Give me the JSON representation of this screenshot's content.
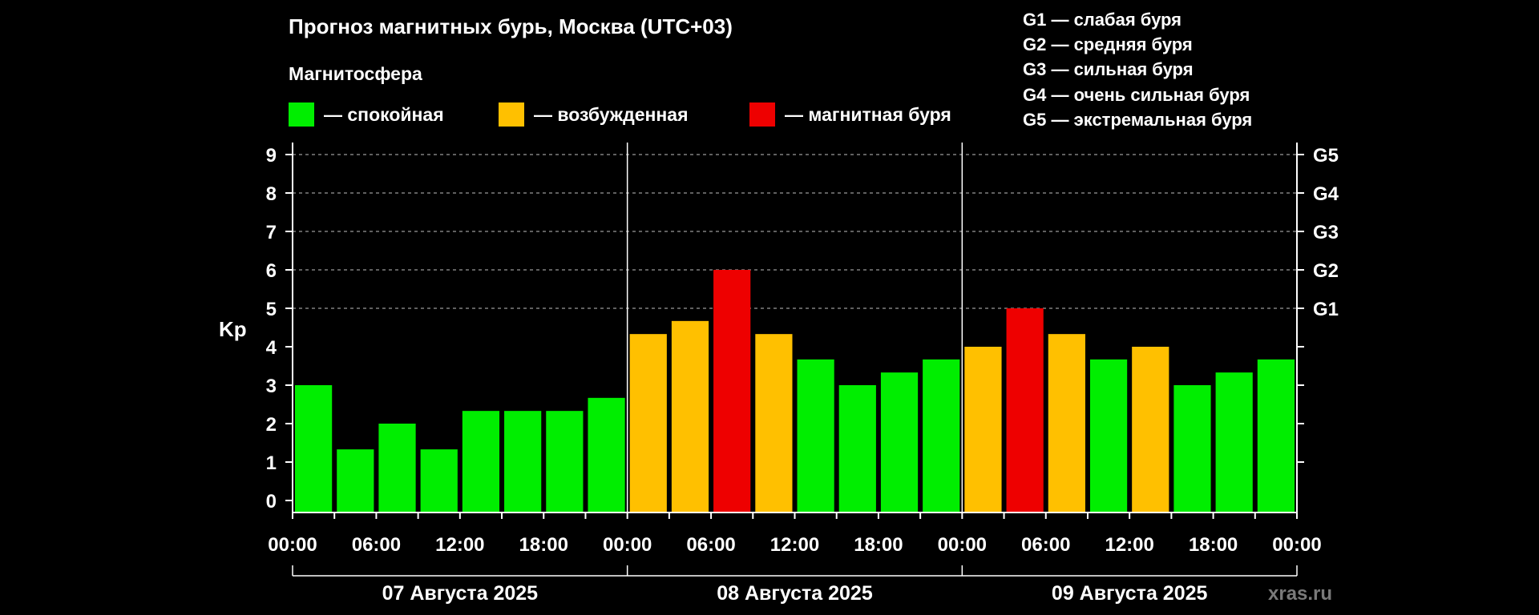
{
  "title": "Прогноз магнитных бурь, Москва (UTC+03)",
  "legend": {
    "heading": "Магнитосфера",
    "items": [
      {
        "label": "— спокойная",
        "color": "#00ee00"
      },
      {
        "label": "— возбужденная",
        "color": "#ffc000"
      },
      {
        "label": "— магнитная буря",
        "color": "#ee0000"
      }
    ]
  },
  "g_scale": [
    "G1 — слабая буря",
    "G2 — средняя буря",
    "G3 — сильная буря",
    "G4 — очень сильная буря",
    "G5 — экстремальная буря"
  ],
  "watermark": "xras.ru",
  "chart_data": {
    "type": "bar",
    "ylabel": "Kp",
    "ylim": [
      0,
      9
    ],
    "yticks": [
      "0",
      "1",
      "2",
      "3",
      "4",
      "5",
      "6",
      "7",
      "8",
      "9"
    ],
    "right_ticks": [
      {
        "value": 5,
        "label": "G1"
      },
      {
        "value": 6,
        "label": "G2"
      },
      {
        "value": 7,
        "label": "G3"
      },
      {
        "value": 8,
        "label": "G4"
      },
      {
        "value": 9,
        "label": "G5"
      }
    ],
    "grid": "dashed at integer Kp 5–9",
    "xtick_labels": [
      "00:00",
      "06:00",
      "12:00",
      "18:00",
      "00:00",
      "06:00",
      "12:00",
      "18:00",
      "00:00",
      "06:00",
      "12:00",
      "18:00",
      "00:00"
    ],
    "days": [
      "07 Августа 2025",
      "08 Августа 2025",
      "09 Августа 2025"
    ],
    "colors": {
      "quiet": "#00ee00",
      "active": "#ffc000",
      "storm": "#ee0000"
    },
    "values": [
      3.0,
      1.33,
      2.0,
      1.33,
      2.33,
      2.33,
      2.33,
      2.67,
      4.33,
      4.67,
      6.0,
      4.33,
      3.67,
      3.0,
      3.33,
      3.67,
      4.0,
      5.0,
      4.33,
      3.67,
      4.0,
      3.0,
      3.33,
      3.67
    ],
    "levels": [
      "quiet",
      "quiet",
      "quiet",
      "quiet",
      "quiet",
      "quiet",
      "quiet",
      "quiet",
      "active",
      "active",
      "storm",
      "active",
      "quiet",
      "quiet",
      "quiet",
      "quiet",
      "active",
      "storm",
      "active",
      "quiet",
      "active",
      "quiet",
      "quiet",
      "quiet"
    ]
  }
}
